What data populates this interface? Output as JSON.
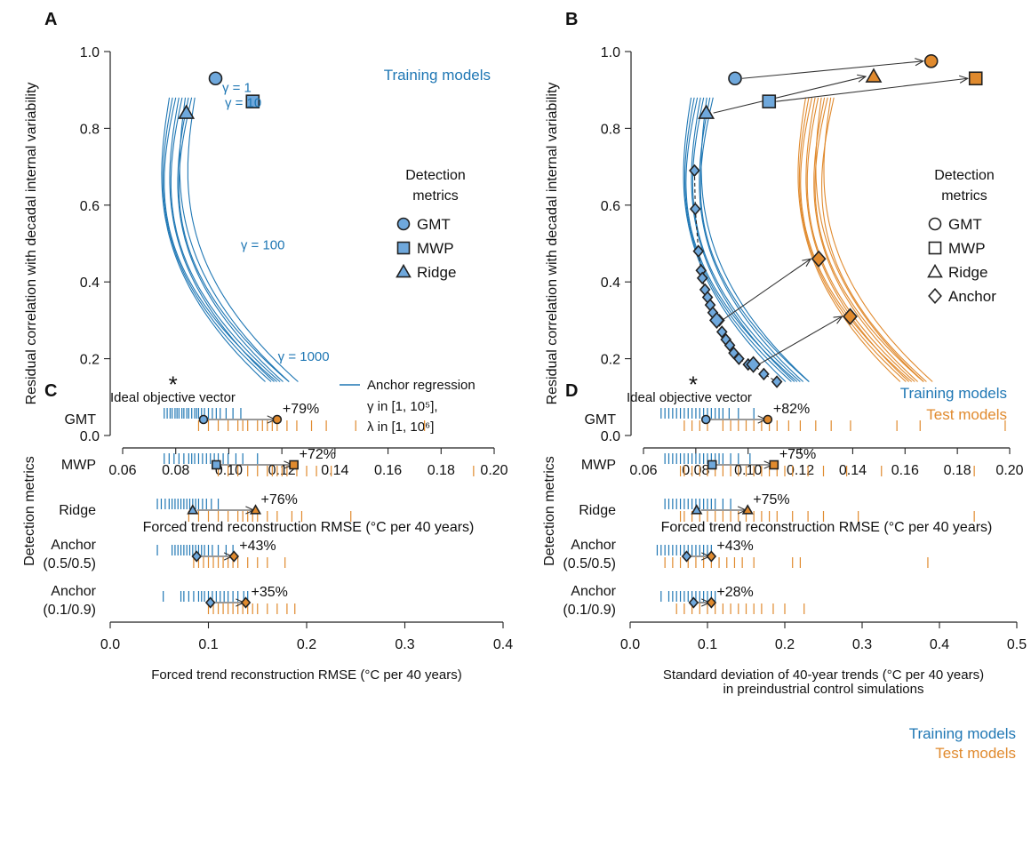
{
  "colors": {
    "training": "#1f77b4",
    "test": "#e08a2e",
    "marker_fill": "#6fa8dc",
    "arrow": "#333333"
  },
  "chart_data": [
    {
      "panel": "A",
      "type": "scatter",
      "xlabel": "Forced trend reconstruction RMSE (°C per 40 years)",
      "ylabel": "Residual correlation with decadal internal variability",
      "xlim": [
        0.06,
        0.2
      ],
      "ylim": [
        0.0,
        1.0
      ],
      "xticks": [
        "0.06",
        "0.08",
        "0.10",
        "0.12",
        "0.14",
        "0.16",
        "0.18",
        "0.20"
      ],
      "yticks": [
        "0.0",
        "0.2",
        "0.4",
        "0.6",
        "0.8",
        "1.0"
      ],
      "series_label": "Training models",
      "legend_title_1": "Detection",
      "legend_title_2": "metrics",
      "legend": [
        "GMT",
        "MWP",
        "Ridge"
      ],
      "points": [
        {
          "name": "GMT",
          "shape": "circle",
          "x": 0.095,
          "y": 0.93
        },
        {
          "name": "MWP",
          "shape": "square",
          "x": 0.109,
          "y": 0.87
        },
        {
          "name": "Ridge",
          "shape": "triangle",
          "x": 0.084,
          "y": 0.84
        }
      ],
      "gamma_labels": [
        {
          "text": "γ = 1",
          "x": 0.0975,
          "y": 0.895
        },
        {
          "text": "γ = 10",
          "x": 0.0985,
          "y": 0.855
        },
        {
          "text": "γ = 100",
          "x": 0.1045,
          "y": 0.485
        },
        {
          "text": "γ = 1000",
          "x": 0.1185,
          "y": 0.195
        }
      ],
      "ideal": {
        "x": 0.079,
        "y": 0.14,
        "label": "Ideal objective vector"
      },
      "anchor_legend": {
        "label": "Anchor regression",
        "gamma": "γ in [1, 10⁵],",
        "lambda": "λ in [1, 10⁶]"
      }
    },
    {
      "panel": "B",
      "type": "scatter",
      "xlabel": "Forced trend reconstruction RMSE (°C per 40 years)",
      "ylabel": "Residual correlation with decadal internal variability",
      "xlim": [
        0.06,
        0.2
      ],
      "ylim": [
        0.0,
        1.0
      ],
      "xticks": [
        "0.06",
        "0.08",
        "0.10",
        "0.12",
        "0.14",
        "0.16",
        "0.18",
        "0.20"
      ],
      "yticks": [
        "0.0",
        "0.2",
        "0.4",
        "0.6",
        "0.8",
        "1.0"
      ],
      "legend_title_1": "Detection",
      "legend_title_2": "metrics",
      "legend": [
        "GMT",
        "MWP",
        "Ridge",
        "Anchor"
      ],
      "series_labels": [
        "Training models",
        "Test models"
      ],
      "training_points": [
        {
          "name": "GMT",
          "shape": "circle",
          "x": 0.095,
          "y": 0.93
        },
        {
          "name": "MWP",
          "shape": "square",
          "x": 0.108,
          "y": 0.87
        },
        {
          "name": "Ridge",
          "shape": "triangle",
          "x": 0.084,
          "y": 0.84
        }
      ],
      "test_points": [
        {
          "name": "GMT",
          "shape": "circle",
          "x": 0.17,
          "y": 0.975
        },
        {
          "name": "MWP",
          "shape": "square",
          "x": 0.187,
          "y": 0.93
        },
        {
          "name": "Ridge",
          "shape": "triangle",
          "x": 0.148,
          "y": 0.935
        }
      ],
      "anchor_train": [
        [
          0.0795,
          0.69
        ],
        [
          0.0798,
          0.59
        ],
        [
          0.081,
          0.48
        ],
        [
          0.082,
          0.43
        ],
        [
          0.0825,
          0.41
        ],
        [
          0.0835,
          0.38
        ],
        [
          0.0845,
          0.36
        ],
        [
          0.0855,
          0.34
        ],
        [
          0.0865,
          0.32
        ],
        [
          0.089,
          0.3
        ],
        [
          0.09,
          0.27
        ],
        [
          0.0915,
          0.25
        ],
        [
          0.093,
          0.235
        ],
        [
          0.0945,
          0.215
        ],
        [
          0.0965,
          0.2
        ],
        [
          0.1,
          0.185
        ],
        [
          0.102,
          0.185
        ],
        [
          0.106,
          0.16
        ],
        [
          0.111,
          0.14
        ]
      ],
      "anchor_test": [
        [
          0.127,
          0.46
        ],
        [
          0.139,
          0.31
        ]
      ],
      "arrows_from_anchor": [
        [
          0.088,
          0.3,
          0.127,
          0.46
        ],
        [
          0.102,
          0.185,
          0.139,
          0.31
        ]
      ],
      "ideal": {
        "x": 0.079,
        "y": 0.14,
        "label": "Ideal objective vector"
      }
    },
    {
      "panel": "C",
      "type": "scatter",
      "xlabel": "Forced trend reconstruction RMSE (°C per 40 years)",
      "ylabel": "Detection metrics",
      "xlim": [
        0.0,
        0.4
      ],
      "xticks": [
        "0.0",
        "0.1",
        "0.2",
        "0.3",
        "0.4"
      ],
      "rows": [
        {
          "label1": "GMT",
          "label2": "",
          "pct": "+79%",
          "shape": "circle",
          "train_mean": 0.095,
          "test_mean": 0.17,
          "train": [
            0.055,
            0.058,
            0.061,
            0.063,
            0.066,
            0.068,
            0.07,
            0.073,
            0.075,
            0.078,
            0.08,
            0.083,
            0.086,
            0.088,
            0.09,
            0.093,
            0.096,
            0.1,
            0.104,
            0.108,
            0.112,
            0.118,
            0.125,
            0.133
          ],
          "test": [
            0.09,
            0.1,
            0.11,
            0.12,
            0.13,
            0.135,
            0.14,
            0.15,
            0.155,
            0.16,
            0.165,
            0.17,
            0.18,
            0.19,
            0.205,
            0.22,
            0.25,
            0.32
          ]
        },
        {
          "label1": "MWP",
          "label2": "",
          "pct": "+72%",
          "shape": "square",
          "train_mean": 0.108,
          "test_mean": 0.187,
          "train": [
            0.055,
            0.06,
            0.065,
            0.07,
            0.075,
            0.08,
            0.083,
            0.086,
            0.09,
            0.094,
            0.098,
            0.102,
            0.106,
            0.11,
            0.115,
            0.12,
            0.128,
            0.135,
            0.15
          ],
          "test": [
            0.11,
            0.12,
            0.13,
            0.14,
            0.15,
            0.16,
            0.165,
            0.17,
            0.175,
            0.18,
            0.19,
            0.2,
            0.21,
            0.225,
            0.37
          ]
        },
        {
          "label1": "Ridge",
          "label2": "",
          "pct": "+76%",
          "shape": "triangle",
          "train_mean": 0.084,
          "test_mean": 0.148,
          "train": [
            0.048,
            0.052,
            0.056,
            0.06,
            0.063,
            0.066,
            0.069,
            0.072,
            0.075,
            0.078,
            0.081,
            0.084,
            0.087,
            0.09,
            0.094,
            0.098,
            0.103,
            0.11
          ],
          "test": [
            0.08,
            0.09,
            0.1,
            0.11,
            0.12,
            0.13,
            0.135,
            0.14,
            0.145,
            0.15,
            0.16,
            0.17,
            0.185,
            0.195,
            0.245
          ]
        },
        {
          "label1": "Anchor",
          "label2": "(0.5/0.5)",
          "pct": "+43%",
          "shape": "diamond",
          "train_mean": 0.088,
          "test_mean": 0.126,
          "train": [
            0.048,
            0.063,
            0.066,
            0.069,
            0.072,
            0.075,
            0.078,
            0.081,
            0.084,
            0.087,
            0.09,
            0.093,
            0.096,
            0.1,
            0.104,
            0.11,
            0.118,
            0.125
          ],
          "test": [
            0.085,
            0.09,
            0.095,
            0.1,
            0.105,
            0.11,
            0.115,
            0.12,
            0.125,
            0.13,
            0.14,
            0.15,
            0.16,
            0.178
          ]
        },
        {
          "label1": "Anchor",
          "label2": "(0.1/0.9)",
          "pct": "+35%",
          "shape": "diamond",
          "train_mean": 0.102,
          "test_mean": 0.138,
          "train": [
            0.054,
            0.072,
            0.075,
            0.08,
            0.085,
            0.09,
            0.093,
            0.096,
            0.1,
            0.104,
            0.108,
            0.112,
            0.116,
            0.12,
            0.125,
            0.13,
            0.136,
            0.14
          ],
          "test": [
            0.1,
            0.105,
            0.11,
            0.115,
            0.12,
            0.125,
            0.13,
            0.135,
            0.14,
            0.145,
            0.15,
            0.16,
            0.17,
            0.18,
            0.188
          ]
        }
      ]
    },
    {
      "panel": "D",
      "type": "scatter",
      "xlabel": "Standard deviation of 40-year trends (°C per 40 years)",
      "xlabel2": "in preindustrial control simulations",
      "ylabel": "Detection metrics",
      "xlim": [
        0.0,
        0.5
      ],
      "xticks": [
        "0.0",
        "0.1",
        "0.2",
        "0.3",
        "0.4",
        "0.5"
      ],
      "series_labels": [
        "Training models",
        "Test models"
      ],
      "rows": [
        {
          "label1": "GMT",
          "label2": "",
          "pct": "+82%",
          "shape": "circle",
          "train_mean": 0.098,
          "test_mean": 0.178,
          "train": [
            0.04,
            0.045,
            0.05,
            0.055,
            0.06,
            0.065,
            0.07,
            0.075,
            0.08,
            0.085,
            0.09,
            0.095,
            0.1,
            0.105,
            0.11,
            0.115,
            0.12,
            0.128,
            0.14,
            0.16
          ],
          "test": [
            0.07,
            0.08,
            0.09,
            0.1,
            0.12,
            0.13,
            0.14,
            0.15,
            0.16,
            0.17,
            0.18,
            0.19,
            0.205,
            0.22,
            0.24,
            0.26,
            0.285,
            0.345,
            0.375,
            0.485
          ]
        },
        {
          "label1": "MWP",
          "label2": "",
          "pct": "+75%",
          "shape": "square",
          "train_mean": 0.106,
          "test_mean": 0.186,
          "train": [
            0.045,
            0.05,
            0.055,
            0.06,
            0.065,
            0.07,
            0.075,
            0.08,
            0.085,
            0.09,
            0.095,
            0.1,
            0.105,
            0.11,
            0.115,
            0.12,
            0.13,
            0.14,
            0.155
          ],
          "test": [
            0.065,
            0.07,
            0.08,
            0.09,
            0.1,
            0.11,
            0.12,
            0.13,
            0.14,
            0.15,
            0.16,
            0.17,
            0.18,
            0.19,
            0.2,
            0.21,
            0.23,
            0.25,
            0.28,
            0.325,
            0.445
          ]
        },
        {
          "label1": "Ridge",
          "label2": "",
          "pct": "+75%",
          "shape": "triangle",
          "train_mean": 0.086,
          "test_mean": 0.152,
          "train": [
            0.045,
            0.05,
            0.055,
            0.06,
            0.065,
            0.07,
            0.075,
            0.08,
            0.085,
            0.09,
            0.095,
            0.1,
            0.105,
            0.11,
            0.12,
            0.13
          ],
          "test": [
            0.065,
            0.07,
            0.08,
            0.09,
            0.1,
            0.11,
            0.12,
            0.13,
            0.14,
            0.15,
            0.16,
            0.17,
            0.18,
            0.19,
            0.21,
            0.23,
            0.25,
            0.295,
            0.445
          ]
        },
        {
          "label1": "Anchor",
          "label2": "(0.5/0.5)",
          "pct": "+43%",
          "shape": "diamond",
          "train_mean": 0.073,
          "test_mean": 0.105,
          "train": [
            0.035,
            0.04,
            0.045,
            0.05,
            0.055,
            0.06,
            0.065,
            0.07,
            0.075,
            0.08,
            0.085,
            0.09,
            0.095,
            0.1,
            0.105
          ],
          "test": [
            0.045,
            0.055,
            0.065,
            0.075,
            0.085,
            0.095,
            0.105,
            0.115,
            0.125,
            0.135,
            0.145,
            0.16,
            0.21,
            0.22,
            0.385
          ]
        },
        {
          "label1": "Anchor",
          "label2": "(0.1/0.9)",
          "pct": "+28%",
          "shape": "diamond",
          "train_mean": 0.082,
          "test_mean": 0.105,
          "train": [
            0.04,
            0.05,
            0.055,
            0.06,
            0.065,
            0.07,
            0.075,
            0.08,
            0.085,
            0.09,
            0.095,
            0.1,
            0.105,
            0.11
          ],
          "test": [
            0.06,
            0.07,
            0.08,
            0.09,
            0.1,
            0.11,
            0.12,
            0.13,
            0.14,
            0.15,
            0.16,
            0.17,
            0.185,
            0.2,
            0.225
          ]
        }
      ]
    }
  ]
}
